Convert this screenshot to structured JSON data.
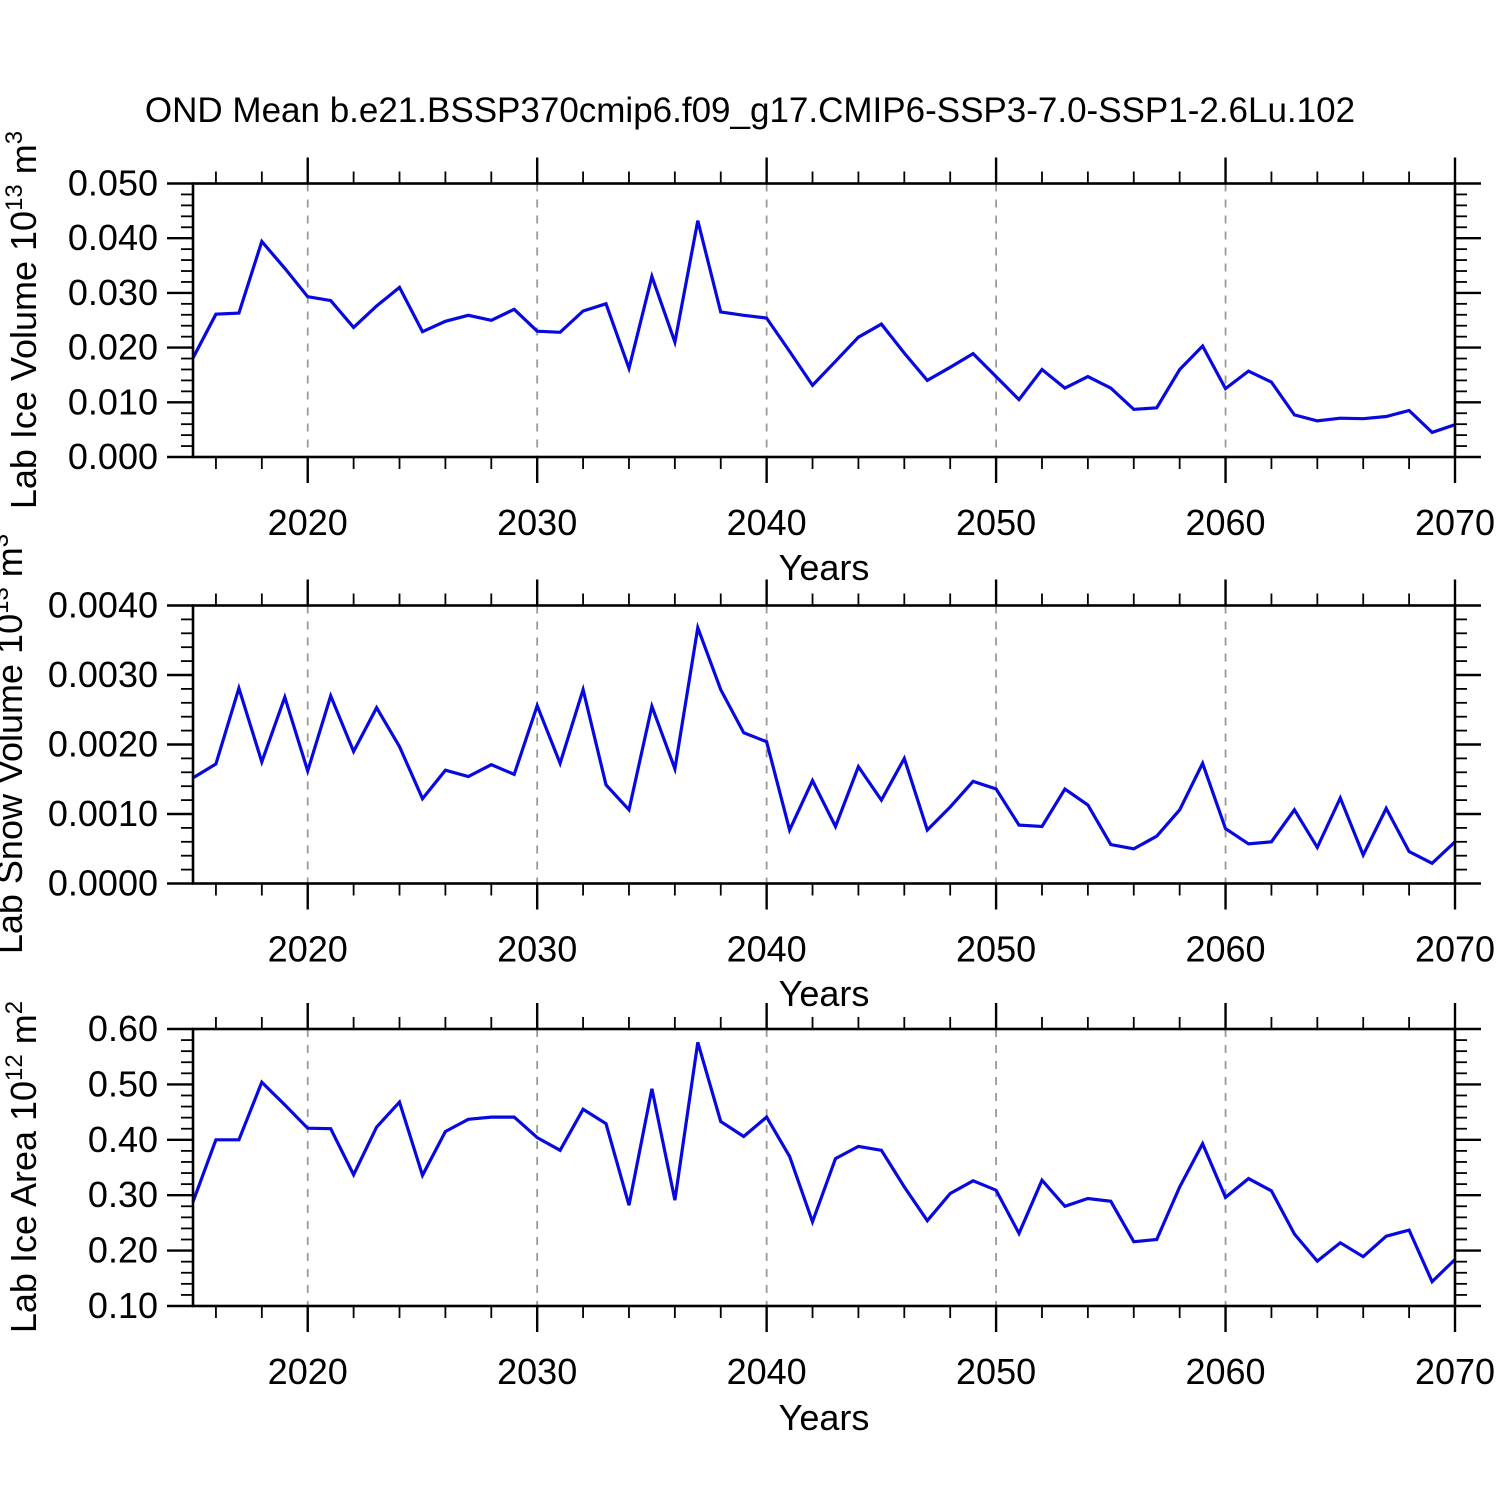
{
  "title": "OND Mean b.e21.BSSP370cmip6.f09_g17.CMIP6-SSP3-7.0-SSP1-2.6Lu.102",
  "chart_data": [
    {
      "type": "line",
      "name": "lab-ice-volume",
      "xlabel": "Years",
      "ylabel": "Lab Ice Volume 10^13 m^3",
      "ylabel_base": "Lab Ice Volume 10",
      "ylabel_exp": "13",
      "ylabel_unit": " m",
      "ylabel_unit_exp": "3",
      "x_start": 2015,
      "x_end": 2070,
      "x_step": 1,
      "xticks": [
        2020,
        2030,
        2040,
        2050,
        2060,
        2070
      ],
      "xtick_labels": [
        "2020",
        "2030",
        "2040",
        "2050",
        "2060",
        "2070"
      ],
      "x_minor_step": 2,
      "ylim": [
        0.0,
        0.05
      ],
      "yticks": [
        0.0,
        0.01,
        0.02,
        0.03,
        0.04,
        0.05
      ],
      "ytick_labels": [
        "0.000",
        "0.010",
        "0.020",
        "0.030",
        "0.040",
        "0.050"
      ],
      "y_minor_step": 0.002,
      "grid": "vertical-dashed",
      "line_color": "#0808e0",
      "values": [
        0.0181,
        0.0261,
        0.0263,
        0.0394,
        0.0345,
        0.0293,
        0.0286,
        0.0237,
        0.0276,
        0.031,
        0.0229,
        0.0248,
        0.0259,
        0.025,
        0.027,
        0.023,
        0.0228,
        0.0267,
        0.028,
        0.0162,
        0.033,
        0.021,
        0.0432,
        0.0265,
        0.0259,
        0.0254,
        0.0193,
        0.0131,
        0.0175,
        0.0219,
        0.0243,
        0.019,
        0.014,
        0.0164,
        0.0189,
        0.0147,
        0.0105,
        0.016,
        0.0126,
        0.0147,
        0.0126,
        0.0087,
        0.009,
        0.016,
        0.0203,
        0.0125,
        0.0157,
        0.0137,
        0.0077,
        0.0066,
        0.0071,
        0.007,
        0.0074,
        0.0085,
        0.0045,
        0.0059
      ]
    },
    {
      "type": "line",
      "name": "lab-snow-volume",
      "xlabel": "Years",
      "ylabel": "Lab Snow Volume 10^13 m^3",
      "ylabel_base": "Lab Snow Volume 10",
      "ylabel_exp": "13",
      "ylabel_unit": " m",
      "ylabel_unit_exp": "3",
      "x_start": 2015,
      "x_end": 2070,
      "x_step": 1,
      "xticks": [
        2020,
        2030,
        2040,
        2050,
        2060,
        2070
      ],
      "xtick_labels": [
        "2020",
        "2030",
        "2040",
        "2050",
        "2060",
        "2070"
      ],
      "x_minor_step": 2,
      "ylim": [
        0.0,
        0.004
      ],
      "yticks": [
        0.0,
        0.001,
        0.002,
        0.003,
        0.004
      ],
      "ytick_labels": [
        "0.0000",
        "0.0010",
        "0.0020",
        "0.0030",
        "0.0040"
      ],
      "y_minor_step": 0.0002,
      "grid": "vertical-dashed",
      "line_color": "#0808e0",
      "values": [
        0.00152,
        0.00172,
        0.00281,
        0.00175,
        0.00268,
        0.00162,
        0.0027,
        0.0019,
        0.00253,
        0.00197,
        0.00122,
        0.00163,
        0.00154,
        0.00171,
        0.00157,
        0.00256,
        0.00173,
        0.00279,
        0.00142,
        0.00106,
        0.00255,
        0.00165,
        0.00368,
        0.00279,
        0.00217,
        0.00204,
        0.00077,
        0.00148,
        0.00082,
        0.00168,
        0.0012,
        0.0018,
        0.00077,
        0.0011,
        0.00147,
        0.00136,
        0.00084,
        0.00082,
        0.00136,
        0.00113,
        0.00056,
        0.0005,
        0.00068,
        0.00106,
        0.00173,
        0.00079,
        0.00057,
        0.0006,
        0.00106,
        0.00052,
        0.00123,
        0.00041,
        0.00108,
        0.00046,
        0.00029,
        0.0006
      ]
    },
    {
      "type": "line",
      "name": "lab-ice-area",
      "xlabel": "Years",
      "ylabel": "Lab Ice Area 10^12 m^2",
      "ylabel_base": "Lab Ice Area 10",
      "ylabel_exp": "12",
      "ylabel_unit": " m",
      "ylabel_unit_exp": "2",
      "x_start": 2015,
      "x_end": 2070,
      "x_step": 1,
      "xticks": [
        2020,
        2030,
        2040,
        2050,
        2060,
        2070
      ],
      "xtick_labels": [
        "2020",
        "2030",
        "2040",
        "2050",
        "2060",
        "2070"
      ],
      "x_minor_step": 2,
      "ylim": [
        0.1,
        0.6
      ],
      "yticks": [
        0.1,
        0.2,
        0.3,
        0.4,
        0.5,
        0.6
      ],
      "ytick_labels": [
        "0.10",
        "0.20",
        "0.30",
        "0.40",
        "0.50",
        "0.60"
      ],
      "y_minor_step": 0.02,
      "grid": "vertical-dashed",
      "line_color": "#0808e0",
      "values": [
        0.288,
        0.4,
        0.4,
        0.504,
        0.463,
        0.421,
        0.42,
        0.337,
        0.423,
        0.468,
        0.336,
        0.415,
        0.437,
        0.441,
        0.441,
        0.404,
        0.381,
        0.455,
        0.429,
        0.282,
        0.492,
        0.291,
        0.576,
        0.433,
        0.406,
        0.441,
        0.37,
        0.252,
        0.366,
        0.388,
        0.381,
        0.315,
        0.254,
        0.303,
        0.326,
        0.309,
        0.231,
        0.327,
        0.28,
        0.294,
        0.289,
        0.216,
        0.22,
        0.315,
        0.393,
        0.296,
        0.33,
        0.308,
        0.23,
        0.181,
        0.214,
        0.189,
        0.226,
        0.237,
        0.144,
        0.184
      ]
    }
  ]
}
